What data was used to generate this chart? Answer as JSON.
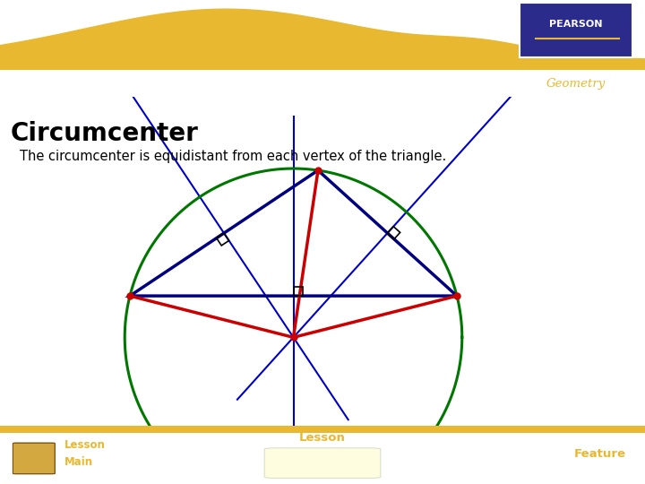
{
  "title": "Circumcenter",
  "subtitle": "The circumcenter is equidistant from each vertex of the triangle.",
  "geometry_label": "Geometry",
  "header_bg": "#BB22BB",
  "header_wave_color": "#E8B830",
  "footer_bg": "#BB22BB",
  "footer_wave_color": "#E8B830",
  "pearson_bg": "#2B2B8C",
  "pearson_text": "PEARSON",
  "geometry_text_color": "#E8B830",
  "content_bg": "#FFFFFF",
  "title_color": "#000000",
  "subtitle_color": "#000000",
  "footer_text_color": "#E8B830",
  "triangle_color": "#000080",
  "circle_color": "#007700",
  "red_lines_color": "#CC0000",
  "bisector_color": "#0000CC",
  "dot_color": "#CC0000"
}
